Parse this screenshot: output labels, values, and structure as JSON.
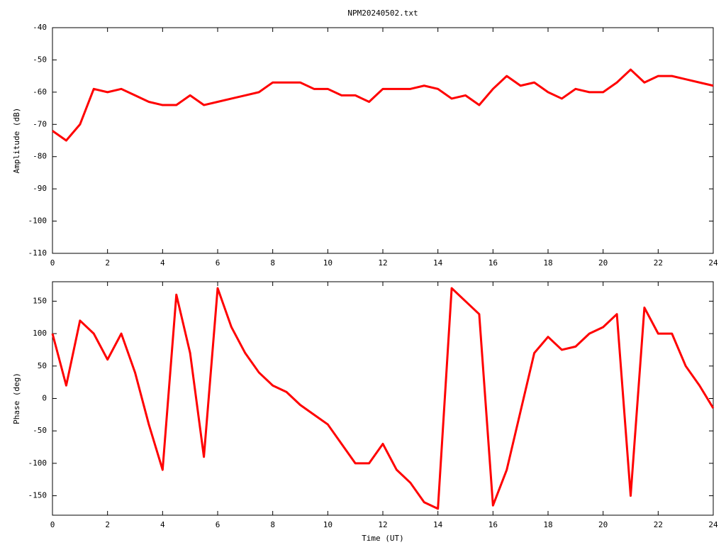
{
  "chart_data": [
    {
      "type": "line",
      "title": "NPM20240502.txt",
      "ylabel": "Amplitude (dB)",
      "x": [
        0,
        0.5,
        1,
        1.5,
        2,
        2.5,
        3,
        3.5,
        4,
        4.5,
        5,
        5.5,
        6,
        6.5,
        7,
        7.5,
        8,
        8.5,
        9,
        9.5,
        10,
        10.5,
        11,
        11.5,
        12,
        12.5,
        13,
        13.5,
        14,
        14.5,
        15,
        15.5,
        16,
        16.5,
        17,
        17.5,
        18,
        18.5,
        19,
        19.5,
        20,
        20.5,
        21,
        21.5,
        22,
        22.5,
        23,
        23.5,
        24
      ],
      "series": [
        {
          "color": "#ff0000",
          "values": [
            -72,
            -75,
            -70,
            -59,
            -60,
            -59,
            -61,
            -63,
            -64,
            -64,
            -61,
            -64,
            -63,
            -62,
            -61,
            -60,
            -57,
            -57,
            -57,
            -59,
            -59,
            -61,
            -61,
            -63,
            -59,
            -59,
            -59,
            -58,
            -59,
            -62,
            -61,
            -64,
            -59,
            -55,
            -58,
            -57,
            -60,
            -62,
            -59,
            -60,
            -60,
            -57,
            -53,
            -57,
            -55,
            -55,
            -56,
            -57,
            -58
          ]
        }
      ],
      "xlim": [
        0,
        24
      ],
      "xticks": [
        0,
        2,
        4,
        6,
        8,
        10,
        12,
        14,
        16,
        18,
        20,
        22,
        24
      ],
      "ylim": [
        -110,
        -40
      ],
      "yticks": [
        -110,
        -100,
        -90,
        -80,
        -70,
        -60,
        -50,
        -40
      ]
    },
    {
      "type": "line",
      "xlabel": "Time (UT)",
      "ylabel": "Phase (deg)",
      "x": [
        0,
        0.5,
        1,
        1.5,
        2,
        2.5,
        3,
        3.5,
        4,
        4.5,
        5,
        5.5,
        6,
        6.5,
        7,
        7.5,
        8,
        8.5,
        9,
        9.5,
        10,
        10.5,
        11,
        11.5,
        12,
        12.5,
        13,
        13.5,
        14,
        14.5,
        15,
        15.5,
        16,
        16.5,
        17,
        17.5,
        18,
        18.5,
        19,
        19.5,
        20,
        20.5,
        21,
        21.5,
        22,
        22.5,
        23,
        23.5,
        24
      ],
      "series": [
        {
          "color": "#ff0000",
          "values": [
            100,
            20,
            120,
            100,
            60,
            100,
            40,
            -40,
            -110,
            160,
            70,
            -90,
            170,
            110,
            70,
            40,
            20,
            10,
            -10,
            -25,
            -40,
            -70,
            -100,
            -100,
            -70,
            -110,
            -130,
            -160,
            -170,
            170,
            150,
            130,
            -165,
            -110,
            -20,
            70,
            95,
            75,
            80,
            100,
            110,
            130,
            -150,
            140,
            100,
            100,
            50,
            20,
            -15
          ]
        }
      ],
      "xlim": [
        0,
        24
      ],
      "xticks": [
        0,
        2,
        4,
        6,
        8,
        10,
        12,
        14,
        16,
        18,
        20,
        22,
        24
      ],
      "ylim": [
        -180,
        180
      ],
      "yticks": [
        -150,
        -100,
        -50,
        0,
        50,
        100,
        150
      ]
    }
  ]
}
